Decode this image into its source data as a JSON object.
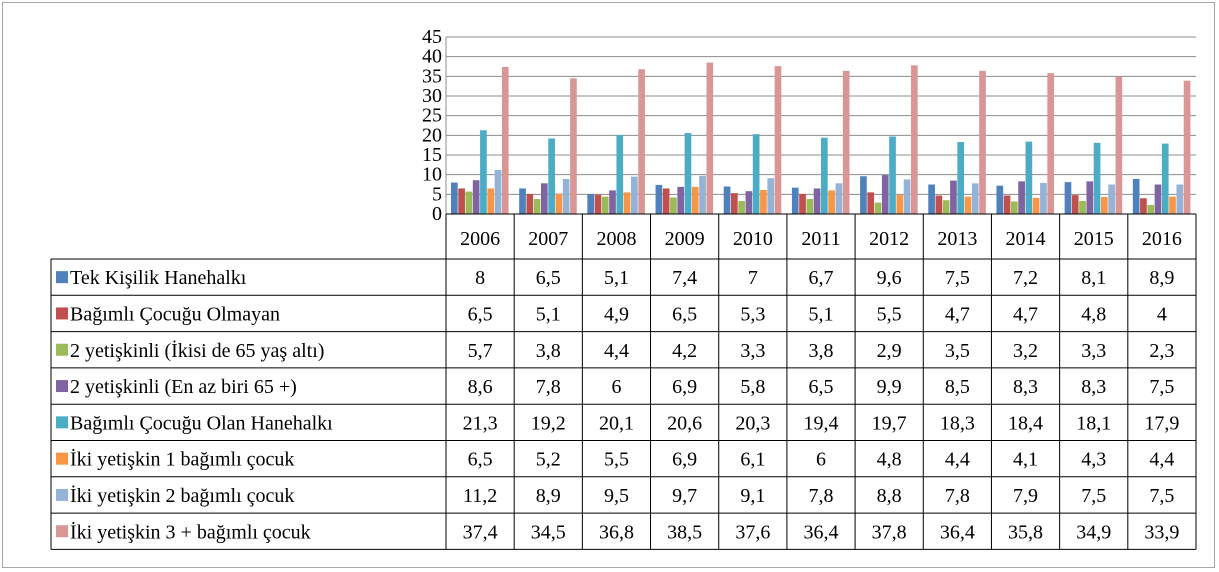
{
  "chart_data": {
    "type": "bar",
    "ylim": [
      0,
      45
    ],
    "yticks": [
      "0",
      "5",
      "10",
      "15",
      "20",
      "25",
      "30",
      "35",
      "40",
      "45"
    ],
    "grid": true,
    "legend": "data-table",
    "categories": [
      "2006",
      "2007",
      "2008",
      "2009",
      "2010",
      "2011",
      "2012",
      "2013",
      "2014",
      "2015",
      "2016"
    ],
    "series": [
      {
        "name": "Tek Kişilik Hanehalkı",
        "color": "#4f81bd",
        "values": [
          8,
          6.5,
          5.1,
          7.4,
          7,
          6.7,
          9.6,
          7.5,
          7.2,
          8.1,
          8.9
        ],
        "labels": [
          "8",
          "6,5",
          "5,1",
          "7,4",
          "7",
          "6,7",
          "9,6",
          "7,5",
          "7,2",
          "8,1",
          "8,9"
        ]
      },
      {
        "name": "Bağımlı Çocuğu Olmayan",
        "color": "#c0504d",
        "values": [
          6.5,
          5.1,
          4.9,
          6.5,
          5.3,
          5.1,
          5.5,
          4.7,
          4.7,
          4.8,
          4
        ],
        "labels": [
          "6,5",
          "5,1",
          "4,9",
          "6,5",
          "5,3",
          "5,1",
          "5,5",
          "4,7",
          "4,7",
          "4,8",
          "4"
        ]
      },
      {
        "name": "2 yetişkinli (İkisi de 65 yaş altı)",
        "color": "#9bbb59",
        "values": [
          5.7,
          3.8,
          4.4,
          4.2,
          3.3,
          3.8,
          2.9,
          3.5,
          3.2,
          3.3,
          2.3
        ],
        "labels": [
          "5,7",
          "3,8",
          "4,4",
          "4,2",
          "3,3",
          "3,8",
          "2,9",
          "3,5",
          "3,2",
          "3,3",
          "2,3"
        ]
      },
      {
        "name": "2 yetişkinli (En az biri 65 +)",
        "color": "#8064a2",
        "values": [
          8.6,
          7.8,
          6,
          6.9,
          5.8,
          6.5,
          9.9,
          8.5,
          8.3,
          8.3,
          7.5
        ],
        "labels": [
          "8,6",
          "7,8",
          "6",
          "6,9",
          "5,8",
          "6,5",
          "9,9",
          "8,5",
          "8,3",
          "8,3",
          "7,5"
        ]
      },
      {
        "name": "Bağımlı Çocuğu Olan Hanehalkı",
        "color": "#4bacc6",
        "values": [
          21.3,
          19.2,
          20.1,
          20.6,
          20.3,
          19.4,
          19.7,
          18.3,
          18.4,
          18.1,
          17.9
        ],
        "labels": [
          "21,3",
          "19,2",
          "20,1",
          "20,6",
          "20,3",
          "19,4",
          "19,7",
          "18,3",
          "18,4",
          "18,1",
          "17,9"
        ]
      },
      {
        "name": "İki yetişkin 1 bağımlı çocuk",
        "color": "#f79646",
        "values": [
          6.5,
          5.2,
          5.5,
          6.9,
          6.1,
          6,
          4.8,
          4.4,
          4.1,
          4.3,
          4.4
        ],
        "labels": [
          "6,5",
          "5,2",
          "5,5",
          "6,9",
          "6,1",
          "6",
          "4,8",
          "4,4",
          "4,1",
          "4,3",
          "4,4"
        ]
      },
      {
        "name": "İki yetişkin 2 bağımlı çocuk",
        "color": "#95b3d7",
        "values": [
          11.2,
          8.9,
          9.5,
          9.7,
          9.1,
          7.8,
          8.8,
          7.8,
          7.9,
          7.5,
          7.5
        ],
        "labels": [
          "11,2",
          "8,9",
          "9,5",
          "9,7",
          "9,1",
          "7,8",
          "8,8",
          "7,8",
          "7,9",
          "7,5",
          "7,5"
        ]
      },
      {
        "name": "İki yetişkin 3 + bağımlı çocuk",
        "color": "#d99694",
        "values": [
          37.4,
          34.5,
          36.8,
          38.5,
          37.6,
          36.4,
          37.8,
          36.4,
          35.8,
          34.9,
          33.9
        ],
        "labels": [
          "37,4",
          "34,5",
          "36,8",
          "38,5",
          "37,6",
          "36,4",
          "37,8",
          "36,4",
          "35,8",
          "34,9",
          "33,9"
        ]
      }
    ]
  }
}
